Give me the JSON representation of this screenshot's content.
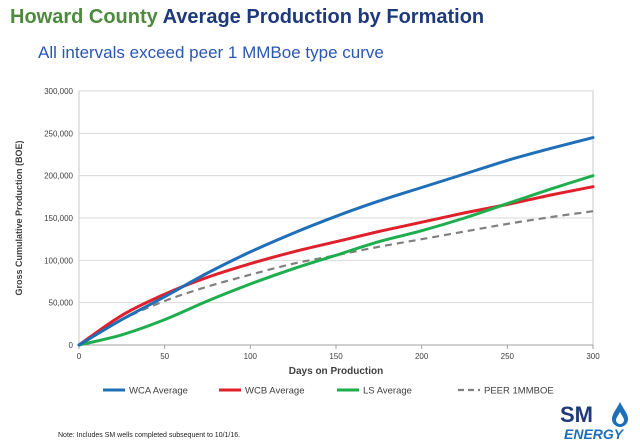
{
  "header": {
    "title_part1": "Howard County",
    "title_part2": "Average Production by Formation",
    "subtitle": "All intervals exceed peer 1 MMBoe type curve"
  },
  "footer": {
    "note": "Note: Includes SM wells completed subsequent to 10/1/16."
  },
  "logo": {
    "text_top": "SM",
    "text_bottom": "ENERGY"
  },
  "chart_data": {
    "type": "line",
    "xlabel": "Days on Production",
    "ylabel": "Gross Cumulative Production (BOE)",
    "xlim": [
      0,
      300
    ],
    "ylim": [
      0,
      300000
    ],
    "xticks": [
      0,
      50,
      100,
      150,
      200,
      250,
      300
    ],
    "yticks": [
      0,
      50000,
      100000,
      150000,
      200000,
      250000,
      300000
    ],
    "ytick_labels": [
      "0",
      "50,000",
      "100,000",
      "150,000",
      "200,000",
      "250,000",
      "300,000"
    ],
    "grid": "horizontal",
    "legend": "bottom",
    "series": [
      {
        "name": "WCA Average",
        "color": "#1f6fb8",
        "style": "solid",
        "x": [
          0,
          25,
          50,
          75,
          100,
          125,
          150,
          175,
          200,
          225,
          250,
          275,
          300
        ],
        "y": [
          0,
          30000,
          57000,
          85000,
          110000,
          132000,
          152000,
          170000,
          186000,
          202000,
          218000,
          232000,
          245000
        ]
      },
      {
        "name": "WCB Average",
        "color": "#e0202a",
        "style": "solid",
        "x": [
          0,
          25,
          50,
          75,
          100,
          125,
          150,
          175,
          200,
          225,
          250,
          275,
          300
        ],
        "y": [
          0,
          35000,
          60000,
          80000,
          96000,
          110000,
          122000,
          134000,
          145000,
          156000,
          166000,
          177000,
          187000
        ]
      },
      {
        "name": "LS Average",
        "color": "#1fae4e",
        "style": "solid",
        "x": [
          0,
          25,
          50,
          75,
          100,
          125,
          150,
          175,
          200,
          225,
          250,
          275,
          300
        ],
        "y": [
          0,
          12000,
          30000,
          52000,
          72000,
          90000,
          106000,
          122000,
          135000,
          150000,
          167000,
          184000,
          200000
        ]
      },
      {
        "name": "PEER 1MMBOE",
        "color": "#808080",
        "style": "dashed",
        "x": [
          0,
          25,
          50,
          75,
          100,
          125,
          150,
          175,
          200,
          225,
          250,
          275,
          300
        ],
        "y": [
          0,
          30000,
          52000,
          69000,
          83000,
          96000,
          106000,
          116000,
          125000,
          134000,
          143000,
          151000,
          158000
        ]
      }
    ]
  }
}
